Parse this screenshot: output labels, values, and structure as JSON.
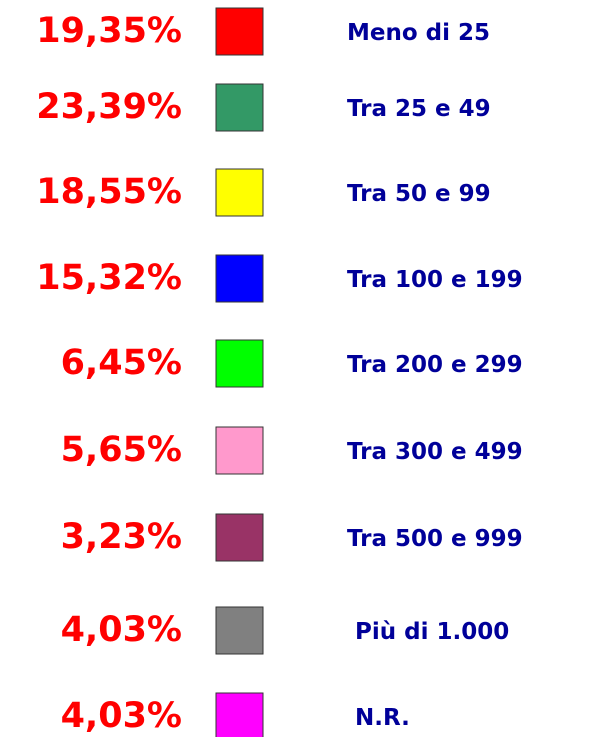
{
  "items": [
    {
      "percent": "19,35%",
      "color": "#ff0000",
      "label": "Meno di 25"
    },
    {
      "percent": "23,39%",
      "color": "#339966",
      "label": "Tra 25 e 49"
    },
    {
      "percent": "18,55%",
      "color": "#ffff00",
      "label": "Tra 50 e 99"
    },
    {
      "percent": "15,32%",
      "color": "#0000ff",
      "label": "Tra 100 e 199"
    },
    {
      "percent": "6,45%",
      "color": "#00ff00",
      "label": "Tra 200 e 299"
    },
    {
      "percent": "5,65%",
      "color": "#ff99cc",
      "label": "Tra 300 e 499"
    },
    {
      "percent": "3,23%",
      "color": "#993366",
      "label": "Tra 500 e 999"
    },
    {
      "percent": "4,03%",
      "color": "#808080",
      "label": "Più di 1.000"
    },
    {
      "percent": "4,03%",
      "color": "#ff00ff",
      "label": "N.R."
    }
  ]
}
